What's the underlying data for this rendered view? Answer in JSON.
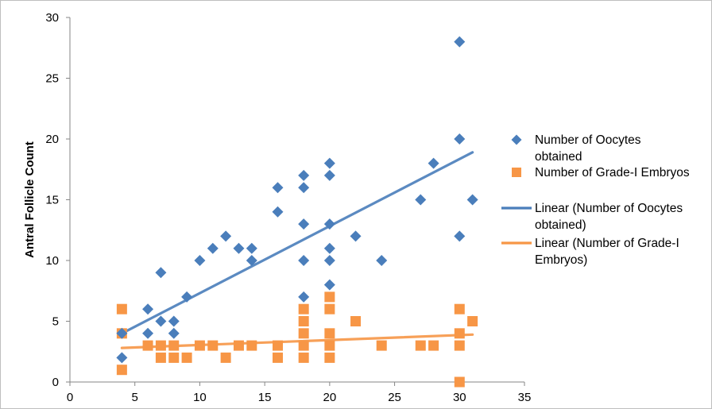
{
  "colors": {
    "oocytes": "#4a7ebb",
    "embryos": "#f79646",
    "axis": "#868686"
  },
  "chart_data": {
    "type": "scatter",
    "title": "",
    "xlabel": "",
    "ylabel": "Antral Follicle Count",
    "xlim": [
      0,
      35
    ],
    "ylim": [
      0,
      30
    ],
    "xticks": [
      "0",
      "5",
      "10",
      "15",
      "20",
      "25",
      "30",
      "35"
    ],
    "yticks": [
      "0",
      "5",
      "10",
      "15",
      "20",
      "25",
      "30"
    ],
    "grid": false,
    "legend_position": "right",
    "series": [
      {
        "name": "Number of Oocytes obtained",
        "marker": "diamond",
        "color": "#4a7ebb",
        "points": [
          [
            4,
            2
          ],
          [
            4,
            4
          ],
          [
            6,
            4
          ],
          [
            6,
            6
          ],
          [
            7,
            5
          ],
          [
            7,
            9
          ],
          [
            8,
            5
          ],
          [
            8,
            4
          ],
          [
            9,
            7
          ],
          [
            10,
            10
          ],
          [
            11,
            11
          ],
          [
            12,
            12
          ],
          [
            13,
            11
          ],
          [
            14,
            11
          ],
          [
            14,
            10
          ],
          [
            16,
            16
          ],
          [
            16,
            14
          ],
          [
            18,
            17
          ],
          [
            18,
            16
          ],
          [
            18,
            13
          ],
          [
            18,
            10
          ],
          [
            18,
            7
          ],
          [
            20,
            18
          ],
          [
            20,
            17
          ],
          [
            20,
            13
          ],
          [
            20,
            11
          ],
          [
            20,
            10
          ],
          [
            20,
            8
          ],
          [
            22,
            12
          ],
          [
            24,
            10
          ],
          [
            27,
            15
          ],
          [
            28,
            18
          ],
          [
            30,
            28
          ],
          [
            30,
            20
          ],
          [
            30,
            12
          ],
          [
            31,
            15
          ]
        ]
      },
      {
        "name": "Number of Grade-I Embryos",
        "marker": "square",
        "color": "#f79646",
        "points": [
          [
            4,
            6
          ],
          [
            4,
            4
          ],
          [
            4,
            1
          ],
          [
            6,
            3
          ],
          [
            7,
            3
          ],
          [
            7,
            2
          ],
          [
            8,
            3
          ],
          [
            8,
            2
          ],
          [
            9,
            2
          ],
          [
            10,
            3
          ],
          [
            11,
            3
          ],
          [
            12,
            2
          ],
          [
            13,
            3
          ],
          [
            14,
            3
          ],
          [
            16,
            3
          ],
          [
            16,
            2
          ],
          [
            18,
            6
          ],
          [
            18,
            5
          ],
          [
            18,
            4
          ],
          [
            18,
            3
          ],
          [
            18,
            2
          ],
          [
            20,
            7
          ],
          [
            20,
            6
          ],
          [
            20,
            4
          ],
          [
            20,
            3
          ],
          [
            20,
            2
          ],
          [
            22,
            5
          ],
          [
            24,
            3
          ],
          [
            27,
            3
          ],
          [
            28,
            3
          ],
          [
            30,
            6
          ],
          [
            30,
            4
          ],
          [
            30,
            3
          ],
          [
            30,
            0
          ],
          [
            31,
            5
          ]
        ]
      }
    ],
    "trendlines": [
      {
        "name": "Linear (Number of Oocytes obtained)",
        "type": "linear",
        "color": "#4a7ebb",
        "x": [
          4,
          31
        ],
        "y": [
          4.0,
          18.9
        ]
      },
      {
        "name": "Linear (Number of Grade-I Embryos)",
        "type": "linear",
        "color": "#f79646",
        "x": [
          4,
          31
        ],
        "y": [
          2.8,
          3.9
        ]
      }
    ],
    "legend": [
      {
        "label_lines": [
          "Number of Oocytes",
          "obtained"
        ],
        "marker": "diamond",
        "color": "#4a7ebb"
      },
      {
        "label_lines": [
          "Number of Grade-I Embryos"
        ],
        "marker": "square",
        "color": "#f79646"
      },
      {
        "label_lines": [
          "Linear (Number of Oocytes",
          "obtained)"
        ],
        "marker": "line",
        "color": "#4a7ebb"
      },
      {
        "label_lines": [
          "Linear (Number of Grade-I",
          "Embryos)"
        ],
        "marker": "line",
        "color": "#f79646"
      }
    ]
  }
}
